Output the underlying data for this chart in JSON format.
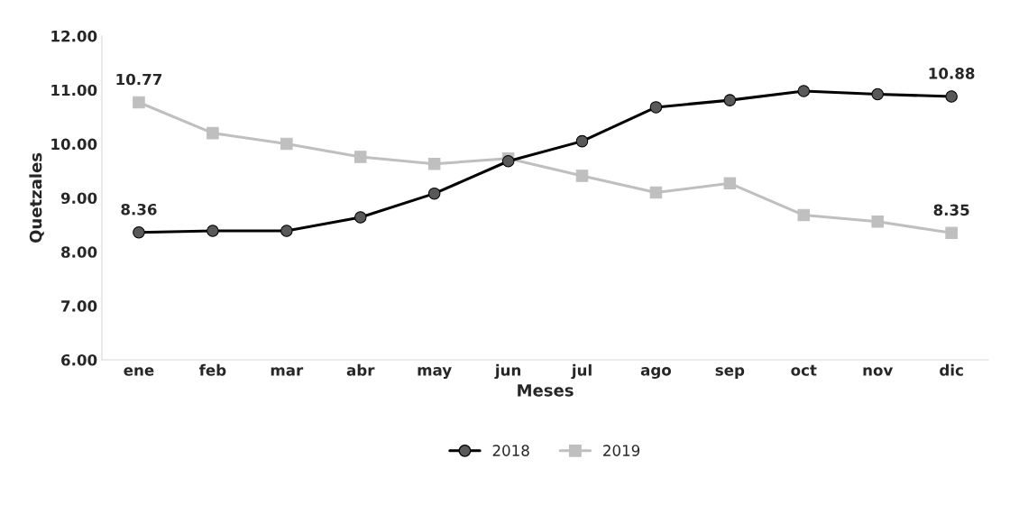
{
  "chart_data": {
    "type": "line",
    "xlabel": "Meses",
    "ylabel": "Quetzales",
    "categories": [
      "ene",
      "feb",
      "mar",
      "abr",
      "may",
      "jun",
      "jul",
      "ago",
      "sep",
      "oct",
      "nov",
      "dic"
    ],
    "series": [
      {
        "name": "2018",
        "color": "#000000",
        "marker": "circle",
        "values": [
          8.36,
          8.39,
          8.39,
          8.64,
          9.08,
          9.68,
          10.05,
          10.68,
          10.81,
          10.98,
          10.92,
          10.88
        ],
        "value_labels": [
          "8.36",
          null,
          null,
          null,
          null,
          null,
          null,
          null,
          null,
          null,
          null,
          "10.88"
        ]
      },
      {
        "name": "2019",
        "color": "#bfbfbf",
        "marker": "square",
        "values": [
          10.77,
          10.2,
          10.0,
          9.76,
          9.63,
          9.73,
          9.41,
          9.1,
          9.27,
          8.68,
          8.56,
          8.35
        ],
        "value_labels": [
          "10.77",
          null,
          null,
          null,
          null,
          null,
          null,
          null,
          null,
          null,
          null,
          "8.35"
        ]
      }
    ],
    "ylim": [
      6.0,
      12.0
    ],
    "yticks": [
      {
        "value": 6,
        "label": "6.00"
      },
      {
        "value": 7,
        "label": "7.00"
      },
      {
        "value": 8,
        "label": "8.00"
      },
      {
        "value": 9,
        "label": "9.00"
      },
      {
        "value": 10,
        "label": "10.00"
      },
      {
        "value": 11,
        "label": "11.00"
      },
      {
        "value": 12,
        "label": "12.00"
      }
    ],
    "grid": false,
    "legend": "bottom"
  }
}
